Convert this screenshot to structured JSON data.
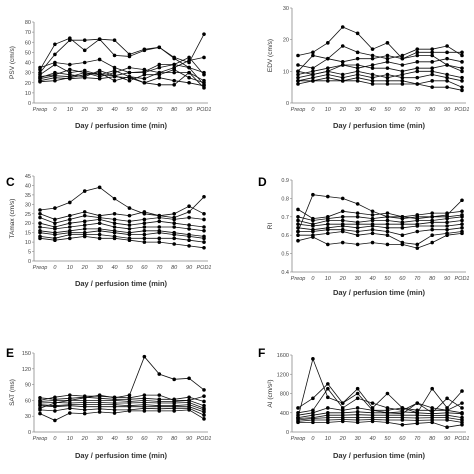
{
  "chart_data": [
    {
      "type": "line",
      "panel_label": "",
      "title": "",
      "xlabel": "Day / perfusion time (min)",
      "ylabel": "PSV (cm/s)",
      "categories": [
        "Preop",
        "0",
        "10",
        "20",
        "30",
        "40",
        "50",
        "60",
        "70",
        "80",
        "90",
        "POD1"
      ],
      "yticks": [
        0,
        10,
        20,
        30,
        40,
        50,
        60,
        70,
        80
      ],
      "ylim": [
        0,
        80
      ],
      "series": [
        {
          "values": [
            33,
            58,
            64,
            52,
            63,
            47,
            46,
            52,
            55,
            45,
            40,
            68
          ]
        },
        {
          "values": [
            30,
            48,
            62,
            62,
            63,
            62,
            48,
            53,
            55,
            44,
            35,
            30
          ]
        },
        {
          "values": [
            35,
            40,
            38,
            40,
            43,
            35,
            30,
            30,
            35,
            38,
            45,
            28
          ]
        },
        {
          "values": [
            28,
            38,
            30,
            32,
            28,
            32,
            26,
            24,
            30,
            35,
            42,
            45
          ]
        },
        {
          "values": [
            26,
            28,
            33,
            30,
            26,
            30,
            35,
            33,
            30,
            30,
            30,
            22
          ]
        },
        {
          "values": [
            25,
            30,
            28,
            26,
            32,
            27,
            30,
            31,
            38,
            38,
            35,
            18
          ]
        },
        {
          "values": [
            24,
            27,
            26,
            30,
            28,
            27,
            22,
            28,
            28,
            33,
            25,
            20
          ]
        },
        {
          "values": [
            22,
            25,
            24,
            25,
            24,
            26,
            25,
            20,
            25,
            22,
            20,
            17
          ]
        },
        {
          "values": [
            21,
            22,
            25,
            28,
            30,
            22,
            26,
            20,
            18,
            18,
            30,
            15
          ]
        }
      ]
    },
    {
      "type": "line",
      "panel_label": "",
      "title": "",
      "xlabel": "Day / perfusion time (min)",
      "ylabel": "EDV (cm/s)",
      "categories": [
        "Preop",
        "0",
        "10",
        "20",
        "30",
        "40",
        "50",
        "60",
        "70",
        "80",
        "90",
        "POD1"
      ],
      "yticks": [
        0,
        10,
        20,
        30
      ],
      "ylim": [
        0,
        30
      ],
      "series": [
        {
          "values": [
            15,
            16,
            19,
            24,
            22,
            17,
            19,
            14,
            15,
            15,
            12,
            10
          ]
        },
        {
          "values": [
            12,
            11,
            14,
            18,
            16,
            15,
            14,
            15,
            17,
            17,
            18,
            15
          ]
        },
        {
          "values": [
            10,
            15,
            14,
            13,
            14,
            14,
            15,
            14,
            16,
            16,
            16,
            16
          ]
        },
        {
          "values": [
            9,
            10,
            11,
            12,
            11,
            12,
            13,
            12,
            13,
            13,
            14,
            13
          ]
        },
        {
          "values": [
            10,
            9,
            10,
            12,
            12,
            11,
            11,
            10,
            11,
            11,
            12,
            11
          ]
        },
        {
          "values": [
            8,
            9,
            10,
            9,
            10,
            9,
            8,
            9,
            10,
            10,
            9,
            8
          ]
        },
        {
          "values": [
            7,
            8,
            9,
            8,
            9,
            8,
            9,
            8,
            8,
            9,
            8,
            7
          ]
        },
        {
          "values": [
            7,
            7,
            8,
            7,
            8,
            7,
            7,
            7,
            6,
            7,
            7,
            5
          ]
        },
        {
          "values": [
            6,
            7,
            7,
            7,
            7,
            6,
            6,
            6,
            6,
            5,
            5,
            4
          ]
        }
      ]
    },
    {
      "type": "line",
      "panel_label": "C",
      "title": "",
      "xlabel": "Day / perfusion time (min)",
      "ylabel": "TAmax (cm/s)",
      "categories": [
        "Preop",
        "0",
        "10",
        "20",
        "30",
        "40",
        "50",
        "60",
        "70",
        "80",
        "90",
        "POD1"
      ],
      "yticks": [
        0,
        5,
        10,
        15,
        20,
        25,
        30,
        35,
        40,
        45
      ],
      "ylim": [
        0,
        45
      ],
      "series": [
        {
          "values": [
            27,
            28,
            31,
            37,
            39,
            33,
            28,
            25,
            24,
            23,
            26,
            34
          ]
        },
        {
          "values": [
            25,
            22,
            24,
            26,
            24,
            25,
            24,
            26,
            24,
            25,
            29,
            25
          ]
        },
        {
          "values": [
            23,
            20,
            22,
            24,
            23,
            22,
            21,
            22,
            23,
            22,
            23,
            22
          ]
        },
        {
          "values": [
            20,
            18,
            20,
            21,
            22,
            20,
            19,
            20,
            21,
            20,
            19,
            18
          ]
        },
        {
          "values": [
            18,
            17,
            18,
            19,
            20,
            18,
            17,
            18,
            18,
            18,
            17,
            16
          ]
        },
        {
          "values": [
            16,
            15,
            16,
            17,
            17,
            16,
            15,
            16,
            16,
            15,
            14,
            13
          ]
        },
        {
          "values": [
            15,
            14,
            15,
            15,
            16,
            15,
            14,
            14,
            15,
            14,
            13,
            12
          ]
        },
        {
          "values": [
            13,
            12,
            14,
            14,
            14,
            13,
            12,
            12,
            12,
            12,
            11,
            10
          ]
        },
        {
          "values": [
            12,
            11,
            12,
            13,
            12,
            12,
            11,
            10,
            10,
            9,
            8,
            7
          ]
        }
      ]
    },
    {
      "type": "line",
      "panel_label": "D",
      "title": "",
      "xlabel": "Day / perfusion time (min)",
      "ylabel": "RI",
      "categories": [
        "Preop",
        "0",
        "10",
        "20",
        "30",
        "40",
        "50",
        "60",
        "70",
        "80",
        "90",
        "POD1"
      ],
      "yticks": [
        0.4,
        0.5,
        0.6,
        0.7,
        0.8,
        0.9
      ],
      "ylim": [
        0.4,
        0.9
      ],
      "series": [
        {
          "values": [
            0.62,
            0.82,
            0.81,
            0.8,
            0.77,
            0.73,
            0.7,
            0.7,
            0.69,
            0.7,
            0.71,
            0.79
          ]
        },
        {
          "values": [
            0.74,
            0.69,
            0.7,
            0.73,
            0.72,
            0.71,
            0.72,
            0.7,
            0.71,
            0.72,
            0.72,
            0.73
          ]
        },
        {
          "values": [
            0.7,
            0.68,
            0.69,
            0.7,
            0.7,
            0.69,
            0.7,
            0.69,
            0.7,
            0.7,
            0.7,
            0.71
          ]
        },
        {
          "values": [
            0.68,
            0.66,
            0.68,
            0.68,
            0.67,
            0.68,
            0.68,
            0.67,
            0.68,
            0.68,
            0.69,
            0.7
          ]
        },
        {
          "values": [
            0.66,
            0.65,
            0.66,
            0.66,
            0.66,
            0.66,
            0.66,
            0.66,
            0.66,
            0.67,
            0.67,
            0.68
          ]
        },
        {
          "values": [
            0.64,
            0.63,
            0.64,
            0.65,
            0.64,
            0.65,
            0.64,
            0.64,
            0.65,
            0.65,
            0.65,
            0.66
          ]
        },
        {
          "values": [
            0.62,
            0.62,
            0.63,
            0.63,
            0.62,
            0.63,
            0.62,
            0.6,
            0.62,
            0.63,
            0.63,
            0.64
          ]
        },
        {
          "values": [
            0.6,
            0.6,
            0.61,
            0.62,
            0.6,
            0.61,
            0.6,
            0.56,
            0.55,
            0.6,
            0.61,
            0.62
          ]
        },
        {
          "values": [
            0.57,
            0.59,
            0.55,
            0.56,
            0.55,
            0.56,
            0.55,
            0.55,
            0.53,
            0.56,
            0.6,
            0.61
          ]
        }
      ]
    },
    {
      "type": "line",
      "panel_label": "E",
      "title": "",
      "xlabel": "Day / perfusion time (min)",
      "ylabel": "SAT (ms)",
      "categories": [
        "Preop",
        "0",
        "10",
        "20",
        "30",
        "40",
        "50",
        "60",
        "70",
        "80",
        "90",
        "POD1"
      ],
      "yticks": [
        0,
        30,
        60,
        90,
        120,
        150
      ],
      "ylim": [
        0,
        150
      ],
      "series": [
        {
          "values": [
            45,
            55,
            60,
            65,
            70,
            65,
            70,
            143,
            110,
            100,
            102,
            80
          ]
        },
        {
          "values": [
            60,
            66,
            70,
            68,
            68,
            66,
            65,
            70,
            70,
            60,
            60,
            68
          ]
        },
        {
          "values": [
            65,
            62,
            64,
            66,
            64,
            62,
            62,
            64,
            62,
            62,
            66,
            58
          ]
        },
        {
          "values": [
            58,
            60,
            60,
            60,
            60,
            60,
            58,
            60,
            58,
            58,
            60,
            50
          ]
        },
        {
          "values": [
            55,
            56,
            55,
            56,
            56,
            55,
            55,
            56,
            55,
            55,
            56,
            45
          ]
        },
        {
          "values": [
            52,
            50,
            52,
            52,
            52,
            52,
            50,
            52,
            50,
            50,
            52,
            42
          ]
        },
        {
          "values": [
            50,
            48,
            50,
            48,
            48,
            48,
            48,
            48,
            48,
            48,
            48,
            38
          ]
        },
        {
          "values": [
            42,
            40,
            45,
            42,
            44,
            42,
            42,
            45,
            44,
            45,
            45,
            32
          ]
        },
        {
          "values": [
            35,
            22,
            36,
            35,
            38,
            36,
            40,
            40,
            40,
            40,
            42,
            25
          ]
        }
      ]
    },
    {
      "type": "line",
      "panel_label": "F",
      "title": "",
      "xlabel": "Day / perfusion time (min)",
      "ylabel": "AI (cm/s²)",
      "categories": [
        "Preop",
        "0",
        "10",
        "20",
        "30",
        "40",
        "50",
        "60",
        "70",
        "80",
        "90",
        "POD1"
      ],
      "yticks": [
        0,
        400,
        800,
        1200,
        1600
      ],
      "ylim": [
        0,
        1600
      ],
      "series": [
        {
          "values": [
            300,
            1520,
            720,
            600,
            800,
            450,
            400,
            380,
            600,
            500,
            450,
            600
          ]
        },
        {
          "values": [
            500,
            700,
            1000,
            600,
            900,
            500,
            800,
            500,
            400,
            900,
            500,
            850
          ]
        },
        {
          "values": [
            400,
            450,
            900,
            500,
            700,
            600,
            500,
            450,
            600,
            400,
            700,
            500
          ]
        },
        {
          "values": [
            350,
            400,
            500,
            450,
            500,
            450,
            450,
            500,
            450,
            450,
            450,
            400
          ]
        },
        {
          "values": [
            300,
            350,
            400,
            400,
            420,
            400,
            400,
            420,
            400,
            380,
            400,
            380
          ]
        },
        {
          "values": [
            280,
            300,
            350,
            350,
            360,
            350,
            350,
            350,
            350,
            340,
            350,
            300
          ]
        },
        {
          "values": [
            250,
            280,
            300,
            300,
            300,
            300,
            300,
            300,
            290,
            300,
            300,
            250
          ]
        },
        {
          "values": [
            220,
            250,
            250,
            260,
            250,
            260,
            250,
            250,
            240,
            250,
            250,
            200
          ]
        },
        {
          "values": [
            200,
            200,
            200,
            220,
            200,
            220,
            200,
            150,
            180,
            200,
            100,
            150
          ]
        }
      ]
    }
  ]
}
